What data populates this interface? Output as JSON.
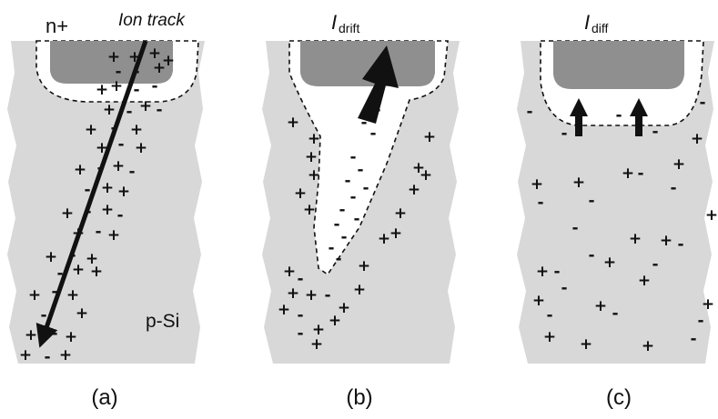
{
  "panels": [
    {
      "id": "a",
      "caption": "(a)",
      "top_label": "n+",
      "track_label": "Ion track",
      "bottom_label": "p-Si"
    },
    {
      "id": "b",
      "caption": "(b)",
      "current_main": "I",
      "current_sub": "drift"
    },
    {
      "id": "c",
      "caption": "(c)",
      "current_main": "I",
      "current_sub": "diff"
    }
  ],
  "charge_symbols": {
    "plus": "+",
    "minus": "-"
  },
  "colors": {
    "substrate": "#d8d8d8",
    "contact": "#8f8f8f",
    "depletion": "#ffffff",
    "ink": "#111111"
  }
}
